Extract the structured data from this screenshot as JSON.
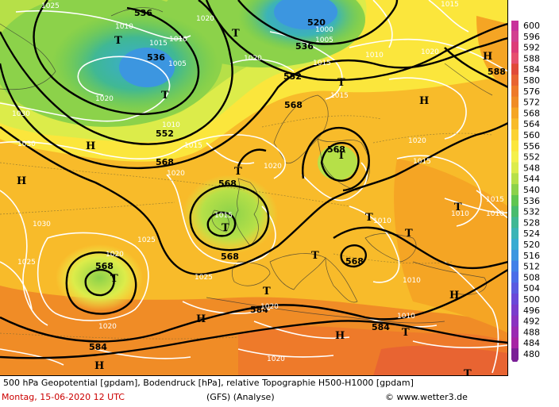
{
  "title": "500 hPa Geopotential [gpdam], Bodendruck [hPa], relative Topographie H500-H1000 [gpdam]",
  "date": "Montag, 15-06-2020  12 UTC",
  "model": "(GFS)   (Analyse)",
  "site": "© www.wetter3.de",
  "legend": {
    "ticks": [
      "600",
      "596",
      "592",
      "588",
      "584",
      "580",
      "576",
      "572",
      "568",
      "564",
      "560",
      "556",
      "552",
      "548",
      "544",
      "540",
      "536",
      "532",
      "528",
      "524",
      "520",
      "516",
      "512",
      "508",
      "504",
      "500",
      "496",
      "492",
      "488",
      "484",
      "480"
    ],
    "colors": [
      "#c8329b",
      "#d24090",
      "#dc3c78",
      "#e6506e",
      "#e04a3a",
      "#e86432",
      "#ee7a2a",
      "#f08c26",
      "#f5a524",
      "#f8bb2a",
      "#fbd232",
      "#fbe63c",
      "#f4f04a",
      "#dcec4a",
      "#b6e048",
      "#8cd24a",
      "#60c650",
      "#48bc6e",
      "#40b894",
      "#3cb4b6",
      "#38acd2",
      "#3c96e0",
      "#4080e8",
      "#4a6ce8",
      "#5a5ae0",
      "#6a48d8",
      "#7a3ccc",
      "#8a32c0",
      "#9a2ab2",
      "#a624a4",
      "#7a1e96"
    ]
  },
  "isobars": [
    "1025",
    "1020",
    "1015",
    "1010",
    "1005",
    "1030"
  ],
  "geopotential_labels": [
    "536",
    "520",
    "552",
    "568",
    "584",
    "588"
  ],
  "highs_lows": {
    "high": "H",
    "low": "T"
  }
}
